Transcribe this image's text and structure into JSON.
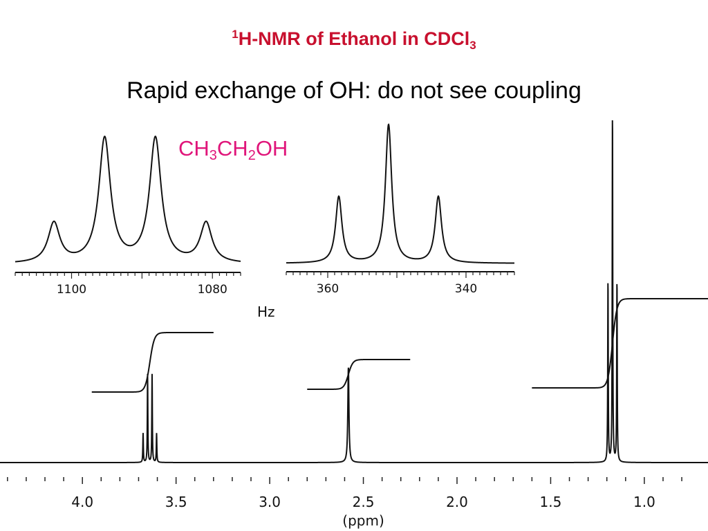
{
  "slide": {
    "title_prefix_sup": "1",
    "title_main": "H-NMR of Ethanol in CDCl",
    "title_sub": "3",
    "subtitle": "Rapid exchange of OH: do not see coupling",
    "formula": {
      "p1": "CH",
      "s1": "3",
      "p2": "CH",
      "s2": "2",
      "p3": "OH"
    },
    "title_color": "#c8102e",
    "formula_color": "#e0157a"
  },
  "chart_data": [
    {
      "type": "line",
      "role": "main-spectrum",
      "xlabel": "(ppm)",
      "x_ticks": [
        "4.0",
        "3.5",
        "3.0",
        "2.5",
        "2.0",
        "1.5",
        "1.0"
      ],
      "x_tick_values": [
        4.0,
        3.5,
        3.0,
        2.5,
        2.0,
        1.5,
        1.0
      ],
      "xlim": [
        4.44,
        0.66
      ],
      "x_reversed": true,
      "peaks": [
        {
          "group": "CH2",
          "shift": 3.64,
          "multiplicity": "quartet",
          "relative_height": 0.25
        },
        {
          "group": "OH",
          "shift": 2.58,
          "multiplicity": "singlet",
          "relative_height": 0.27
        },
        {
          "group": "CH3",
          "shift": 1.17,
          "multiplicity": "triplet",
          "relative_height": 1.0
        }
      ],
      "integrals": [
        {
          "group": "CH2",
          "from": 3.95,
          "to": 3.3,
          "relative_step": 2
        },
        {
          "group": "OH",
          "from": 2.8,
          "to": 2.25,
          "relative_step": 1
        },
        {
          "group": "CH3",
          "from": 1.6,
          "to": 0.66,
          "relative_step": 3
        }
      ]
    },
    {
      "type": "line",
      "role": "inset-expansion-CH2",
      "x_ticks": [
        "1100",
        "1080"
      ],
      "x_tick_values": [
        1100,
        1080
      ],
      "xunit": "Hz",
      "xlim": [
        1108,
        1076
      ],
      "x_reversed": true,
      "peaks": [
        {
          "x": 1102.5,
          "relative_height": 0.32
        },
        {
          "x": 1095.3,
          "relative_height": 1.0
        },
        {
          "x": 1088.1,
          "relative_height": 1.0
        },
        {
          "x": 1080.9,
          "relative_height": 0.32
        }
      ]
    },
    {
      "type": "line",
      "role": "inset-expansion-CH3",
      "x_ticks": [
        "360",
        "340"
      ],
      "x_tick_values": [
        360,
        340
      ],
      "xunit": "Hz",
      "xlim": [
        366,
        333
      ],
      "x_reversed": true,
      "peaks": [
        {
          "x": 358.4,
          "relative_height": 0.48
        },
        {
          "x": 351.2,
          "relative_height": 1.0
        },
        {
          "x": 344.0,
          "relative_height": 0.48
        }
      ]
    }
  ],
  "hz_label": "Hz"
}
